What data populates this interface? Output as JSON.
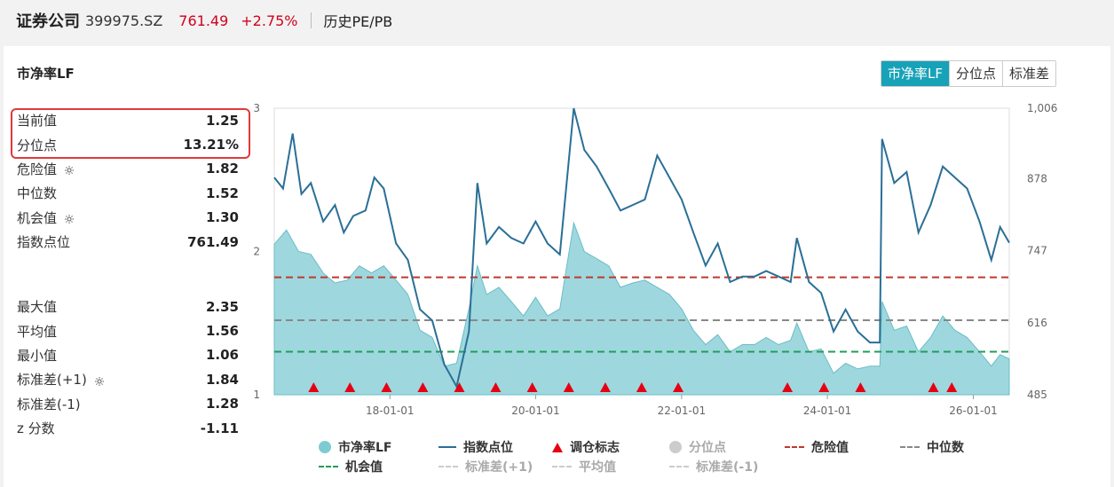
{
  "header": {
    "name": "证券公司",
    "code": "399975.SZ",
    "price": "761.49",
    "change": "+2.75%",
    "tab": "历史PE/PB"
  },
  "card": {
    "title": "市净率LF",
    "segments": [
      "市净率LF",
      "分位点",
      "标准差"
    ],
    "active_segment": "市净率LF"
  },
  "stats_top": [
    {
      "label": "当前值",
      "value": "1.25",
      "gear": false
    },
    {
      "label": "分位点",
      "value": "13.21%",
      "gear": false
    },
    {
      "label": "危险值",
      "value": "1.82",
      "gear": true
    },
    {
      "label": "中位数",
      "value": "1.52",
      "gear": false
    },
    {
      "label": "机会值",
      "value": "1.30",
      "gear": true
    },
    {
      "label": "指数点位",
      "value": "761.49",
      "gear": false
    }
  ],
  "stats_bottom": [
    {
      "label": "最大值",
      "value": "2.35",
      "gear": false
    },
    {
      "label": "平均值",
      "value": "1.56",
      "gear": false
    },
    {
      "label": "最小值",
      "value": "1.06",
      "gear": false
    },
    {
      "label": "标准差(+1)",
      "value": "1.84",
      "gear": true
    },
    {
      "label": "标准差(-1)",
      "value": "1.28",
      "gear": false
    },
    {
      "label": "z 分数",
      "value": "-1.11",
      "gear": false
    }
  ],
  "legend": [
    {
      "label": "市净率LF",
      "kind": "dot",
      "color": "#7ecbd3",
      "active": true
    },
    {
      "label": "指数点位",
      "kind": "line",
      "color": "#2a6f97",
      "active": true
    },
    {
      "label": "调仓标志",
      "kind": "triangle",
      "color": "#e60012",
      "active": true
    },
    {
      "label": "分位点",
      "kind": "dot",
      "color": "#cccccc",
      "active": false
    },
    {
      "label": "危险值",
      "kind": "dash",
      "color": "#c0392b",
      "active": true
    },
    {
      "label": "中位数",
      "kind": "dash",
      "color": "#888888",
      "active": true
    },
    {
      "label": "机会值",
      "kind": "dash",
      "color": "#1e9e5a",
      "active": true
    },
    {
      "label": "标准差(+1)",
      "kind": "dash",
      "color": "#cccccc",
      "active": false
    },
    {
      "label": "平均值",
      "kind": "dash",
      "color": "#cccccc",
      "active": false
    },
    {
      "label": "标准差(-1)",
      "kind": "dash",
      "color": "#cccccc",
      "active": false
    }
  ],
  "chart_data": {
    "type": "area",
    "x_tick_labels": [
      "18-01-01",
      "20-01-01",
      "22-01-01",
      "24-01-01",
      "26-01-01"
    ],
    "x_tick_dates": [
      "2018-01-01",
      "2020-01-01",
      "2022-01-01",
      "2024-01-01",
      "2026-01-01"
    ],
    "x_range": [
      "2016-06-01",
      "2026-06-30"
    ],
    "left_axis": {
      "ticks": [
        "1",
        "2",
        "3"
      ],
      "range": [
        1,
        3
      ]
    },
    "right_axis": {
      "ticks": [
        "485",
        "616",
        "747",
        "878",
        "1,006"
      ],
      "range": [
        485,
        1006
      ]
    },
    "reference_lines": {
      "danger": 1.82,
      "median": 1.52,
      "opportunity": 1.3
    },
    "colors": {
      "area": "#7ecbd3",
      "index_line": "#2a6f97",
      "danger": "#c0392b",
      "median": "#888888",
      "opportunity": "#1e9e5a",
      "marker": "#e60012"
    },
    "pb_series": [
      [
        "2016-06-01",
        2.05
      ],
      [
        "2016-08-01",
        2.15
      ],
      [
        "2016-10-01",
        2.0
      ],
      [
        "2016-12-01",
        1.98
      ],
      [
        "2017-02-01",
        1.85
      ],
      [
        "2017-04-01",
        1.78
      ],
      [
        "2017-06-01",
        1.8
      ],
      [
        "2017-08-01",
        1.9
      ],
      [
        "2017-10-01",
        1.85
      ],
      [
        "2017-12-01",
        1.9
      ],
      [
        "2018-02-01",
        1.8
      ],
      [
        "2018-04-01",
        1.7
      ],
      [
        "2018-06-01",
        1.45
      ],
      [
        "2018-08-01",
        1.4
      ],
      [
        "2018-10-01",
        1.2
      ],
      [
        "2018-12-01",
        1.22
      ],
      [
        "2019-02-01",
        1.6
      ],
      [
        "2019-03-15",
        1.9
      ],
      [
        "2019-05-01",
        1.7
      ],
      [
        "2019-07-01",
        1.75
      ],
      [
        "2019-09-01",
        1.65
      ],
      [
        "2019-11-01",
        1.55
      ],
      [
        "2020-01-01",
        1.68
      ],
      [
        "2020-03-01",
        1.55
      ],
      [
        "2020-05-01",
        1.6
      ],
      [
        "2020-07-10",
        2.2
      ],
      [
        "2020-09-01",
        2.0
      ],
      [
        "2020-11-01",
        1.95
      ],
      [
        "2021-01-01",
        1.9
      ],
      [
        "2021-03-01",
        1.75
      ],
      [
        "2021-05-01",
        1.78
      ],
      [
        "2021-07-01",
        1.8
      ],
      [
        "2021-09-01",
        1.75
      ],
      [
        "2021-11-01",
        1.7
      ],
      [
        "2022-01-01",
        1.6
      ],
      [
        "2022-03-01",
        1.45
      ],
      [
        "2022-05-01",
        1.35
      ],
      [
        "2022-07-01",
        1.42
      ],
      [
        "2022-09-01",
        1.3
      ],
      [
        "2022-11-01",
        1.35
      ],
      [
        "2023-01-01",
        1.35
      ],
      [
        "2023-03-01",
        1.4
      ],
      [
        "2023-05-01",
        1.35
      ],
      [
        "2023-07-01",
        1.38
      ],
      [
        "2023-08-01",
        1.5
      ],
      [
        "2023-10-01",
        1.3
      ],
      [
        "2023-12-01",
        1.32
      ],
      [
        "2024-02-01",
        1.15
      ],
      [
        "2024-04-01",
        1.22
      ],
      [
        "2024-06-01",
        1.18
      ],
      [
        "2024-08-01",
        1.2
      ],
      [
        "2024-09-20",
        1.2
      ],
      [
        "2024-10-01",
        1.65
      ],
      [
        "2024-12-01",
        1.45
      ],
      [
        "2025-02-01",
        1.48
      ],
      [
        "2025-04-01",
        1.3
      ],
      [
        "2025-06-01",
        1.4
      ],
      [
        "2025-08-01",
        1.55
      ],
      [
        "2025-10-01",
        1.45
      ],
      [
        "2025-12-01",
        1.4
      ],
      [
        "2026-02-01",
        1.3
      ],
      [
        "2026-04-01",
        1.2
      ],
      [
        "2026-05-15",
        1.28
      ],
      [
        "2026-06-30",
        1.25
      ]
    ],
    "index_series": [
      [
        "2016-06-01",
        880
      ],
      [
        "2016-07-15",
        860
      ],
      [
        "2016-09-01",
        960
      ],
      [
        "2016-10-15",
        850
      ],
      [
        "2016-12-01",
        870
      ],
      [
        "2017-02-01",
        800
      ],
      [
        "2017-04-01",
        830
      ],
      [
        "2017-05-15",
        780
      ],
      [
        "2017-07-01",
        810
      ],
      [
        "2017-09-01",
        820
      ],
      [
        "2017-10-15",
        880
      ],
      [
        "2017-12-01",
        860
      ],
      [
        "2018-02-01",
        760
      ],
      [
        "2018-04-01",
        730
      ],
      [
        "2018-06-01",
        640
      ],
      [
        "2018-08-01",
        620
      ],
      [
        "2018-10-01",
        540
      ],
      [
        "2018-12-01",
        500
      ],
      [
        "2019-02-01",
        600
      ],
      [
        "2019-03-15",
        870
      ],
      [
        "2019-05-01",
        760
      ],
      [
        "2019-07-01",
        790
      ],
      [
        "2019-09-01",
        770
      ],
      [
        "2019-11-01",
        760
      ],
      [
        "2020-01-01",
        800
      ],
      [
        "2020-03-01",
        760
      ],
      [
        "2020-05-01",
        740
      ],
      [
        "2020-07-10",
        1006
      ],
      [
        "2020-09-01",
        930
      ],
      [
        "2020-11-01",
        900
      ],
      [
        "2021-01-01",
        860
      ],
      [
        "2021-03-01",
        820
      ],
      [
        "2021-05-01",
        830
      ],
      [
        "2021-07-01",
        840
      ],
      [
        "2021-09-01",
        920
      ],
      [
        "2021-11-01",
        880
      ],
      [
        "2022-01-01",
        840
      ],
      [
        "2022-03-01",
        780
      ],
      [
        "2022-05-01",
        720
      ],
      [
        "2022-07-01",
        760
      ],
      [
        "2022-09-01",
        690
      ],
      [
        "2022-11-01",
        700
      ],
      [
        "2023-01-01",
        700
      ],
      [
        "2023-03-01",
        710
      ],
      [
        "2023-05-01",
        700
      ],
      [
        "2023-07-01",
        690
      ],
      [
        "2023-08-01",
        770
      ],
      [
        "2023-10-01",
        690
      ],
      [
        "2023-12-01",
        670
      ],
      [
        "2024-02-01",
        600
      ],
      [
        "2024-04-01",
        640
      ],
      [
        "2024-06-01",
        600
      ],
      [
        "2024-08-01",
        580
      ],
      [
        "2024-09-20",
        580
      ],
      [
        "2024-10-01",
        950
      ],
      [
        "2024-12-01",
        870
      ],
      [
        "2025-02-01",
        890
      ],
      [
        "2025-04-01",
        780
      ],
      [
        "2025-06-01",
        830
      ],
      [
        "2025-08-01",
        900
      ],
      [
        "2025-10-01",
        880
      ],
      [
        "2025-12-01",
        860
      ],
      [
        "2026-02-01",
        800
      ],
      [
        "2026-04-01",
        730
      ],
      [
        "2026-05-15",
        790
      ],
      [
        "2026-06-30",
        761.49
      ]
    ],
    "rebalance_markers": [
      "2016-12-15",
      "2017-06-15",
      "2017-12-15",
      "2018-06-15",
      "2018-12-15",
      "2019-06-15",
      "2019-12-15",
      "2020-06-15",
      "2020-12-15",
      "2021-06-15",
      "2021-12-15",
      "2023-06-15",
      "2023-12-15",
      "2024-06-15",
      "2025-06-15",
      "2025-09-15"
    ]
  }
}
